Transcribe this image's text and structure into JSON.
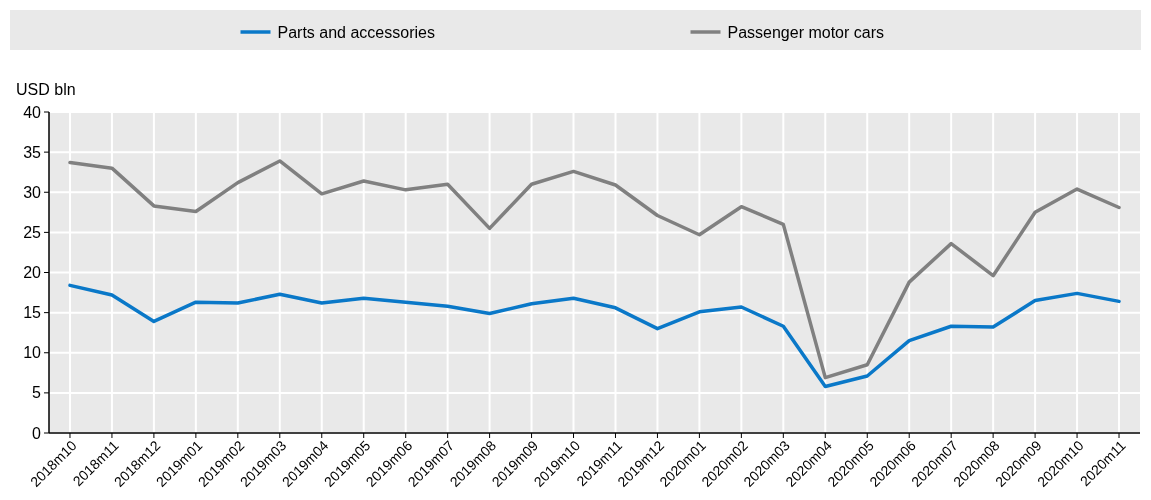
{
  "chart_data": {
    "type": "line",
    "ylabel": "USD bln",
    "categories": [
      "2018m10",
      "2018m11",
      "2018m12",
      "2019m01",
      "2019m02",
      "2019m03",
      "2019m04",
      "2019m05",
      "2019m06",
      "2019m07",
      "2019m08",
      "2019m09",
      "2019m10",
      "2019m11",
      "2019m12",
      "2020m01",
      "2020m02",
      "2020m03",
      "2020m04",
      "2020m05",
      "2020m06",
      "2020m07",
      "2020m08",
      "2020m09",
      "2020m10",
      "2020m11"
    ],
    "series": [
      {
        "name": "Parts and accessories",
        "color": "#0a78c8",
        "values": [
          18.4,
          17.2,
          13.9,
          16.3,
          16.2,
          17.3,
          16.2,
          16.8,
          16.3,
          15.8,
          14.9,
          16.1,
          16.8,
          15.6,
          13.0,
          15.1,
          15.7,
          13.3,
          5.8,
          7.1,
          11.5,
          13.3,
          13.2,
          16.5,
          17.4,
          16.4
        ]
      },
      {
        "name": "Passenger motor cars",
        "color": "#808080",
        "values": [
          33.7,
          33.0,
          28.3,
          27.6,
          31.2,
          33.9,
          29.8,
          31.4,
          30.3,
          31.0,
          25.5,
          31.0,
          32.6,
          30.9,
          27.1,
          24.7,
          28.2,
          26.0,
          6.9,
          8.5,
          18.8,
          23.6,
          19.6,
          27.5,
          30.4,
          28.1
        ]
      }
    ],
    "ylim": [
      0,
      40
    ],
    "yticks": [
      0,
      5,
      10,
      15,
      20,
      25,
      30,
      35,
      40
    ],
    "grid": true,
    "legend": "top",
    "marker": "none",
    "line_style": "solid"
  }
}
